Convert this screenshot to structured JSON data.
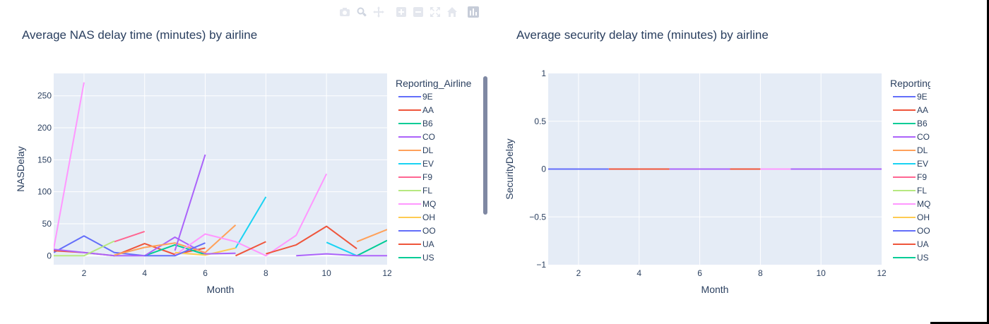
{
  "modebar": {
    "icons": [
      "camera-icon",
      "zoom-icon",
      "pan-icon",
      "zoom-in-icon",
      "zoom-out-icon",
      "autoscale-icon",
      "home-icon",
      "plotly-logo-icon"
    ]
  },
  "colors": {
    "plot_bg": "#e5ecf6",
    "text": "#2a3f5f",
    "scrollbar": "#7f88a3",
    "series": {
      "9E": "#636efa",
      "AA": "#EF553B",
      "B6": "#00cc96",
      "CO": "#ab63fa",
      "DL": "#FFA15A",
      "EV": "#19d3f3",
      "F9": "#FF6692",
      "FL": "#B6E880",
      "MQ": "#FF97FF",
      "OH": "#FECB52",
      "OO": "#636efa",
      "UA": "#EF553B",
      "US": "#00cc96"
    }
  },
  "chart_data": [
    {
      "type": "line",
      "title": "Average NAS delay time (minutes) by airline",
      "xlabel": "Month",
      "ylabel": "NASDelay",
      "xlim": [
        1,
        12
      ],
      "ylim": [
        -14,
        285
      ],
      "xticks": [
        2,
        4,
        6,
        8,
        10,
        12
      ],
      "yticks": [
        0,
        50,
        100,
        150,
        200,
        250
      ],
      "legend_title": "Reporting_Airline",
      "legend": [
        "9E",
        "AA",
        "B6",
        "CO",
        "DL",
        "EV",
        "F9",
        "FL",
        "MQ",
        "OH",
        "OO",
        "UA",
        "US"
      ],
      "series": [
        {
          "name": "9E",
          "x": [
            1,
            2,
            3,
            4
          ],
          "y": [
            5,
            31,
            5,
            0
          ]
        },
        {
          "name": "AA",
          "x": [
            1,
            2,
            3,
            4,
            5,
            6
          ],
          "y": [
            8,
            5,
            0,
            19,
            2,
            12
          ]
        },
        {
          "name": "B6",
          "x": [
            4,
            5,
            6
          ],
          "y": [
            0,
            17,
            2
          ]
        },
        {
          "name": "CO",
          "x": [
            1,
            2,
            3,
            4,
            5,
            6
          ],
          "y": [
            10,
            5,
            0,
            0,
            29,
            3
          ]
        },
        {
          "name": "DL",
          "x": [
            3,
            4,
            5,
            6,
            7
          ],
          "y": [
            1,
            13,
            20,
            5,
            48
          ]
        },
        {
          "name": "EV",
          "x": [
            7,
            8
          ],
          "y": [
            12,
            92
          ]
        },
        {
          "name": "F9",
          "x": [
            3,
            4
          ],
          "y": [
            22,
            38
          ]
        },
        {
          "name": "FL",
          "x": [
            1,
            2,
            3
          ],
          "y": [
            0,
            0,
            23
          ]
        },
        {
          "name": "MQ",
          "x": [
            1,
            2
          ],
          "y": [
            11,
            271
          ]
        },
        {
          "name": "MQ",
          "x": [
            5,
            6,
            7,
            8,
            9,
            10
          ],
          "y": [
            1,
            34,
            22,
            0,
            32,
            128
          ]
        },
        {
          "name": "OH",
          "x": [
            5,
            6,
            7
          ],
          "y": [
            5,
            1,
            12
          ]
        },
        {
          "name": "OO",
          "x": [
            4,
            5,
            6
          ],
          "y": [
            0,
            0,
            20
          ]
        },
        {
          "name": "UA",
          "x": [
            7,
            8
          ],
          "y": [
            0,
            22
          ]
        },
        {
          "name": "UA",
          "x": [
            8,
            9,
            10,
            11
          ],
          "y": [
            3,
            17,
            46,
            11
          ]
        },
        {
          "name": "EV",
          "x": [
            10,
            11
          ],
          "y": [
            21,
            0
          ]
        },
        {
          "name": "US",
          "x": [
            11,
            12
          ],
          "y": [
            0,
            24
          ]
        },
        {
          "name": "DL",
          "x": [
            11,
            12
          ],
          "y": [
            22,
            41
          ]
        },
        {
          "name": "CO",
          "x": [
            5,
            6
          ],
          "y": [
            8,
            158
          ]
        },
        {
          "name": "CO",
          "x": [
            6,
            7
          ],
          "y": [
            3,
            4
          ]
        },
        {
          "name": "CO",
          "x": [
            9,
            10,
            11,
            12
          ],
          "y": [
            0,
            3,
            0,
            0
          ]
        }
      ]
    },
    {
      "type": "line",
      "title": "Average security delay time (minutes) by airline",
      "xlabel": "Month",
      "ylabel": "SecurityDelay",
      "xlim": [
        1,
        12
      ],
      "ylim": [
        -1,
        1
      ],
      "xticks": [
        2,
        4,
        6,
        8,
        10,
        12
      ],
      "yticks": [
        -1,
        -0.5,
        0,
        0.5,
        1
      ],
      "ytick_labels": [
        "−1",
        "−0.5",
        "0",
        "0.5",
        "1"
      ],
      "legend_title": "Reporting_Airline",
      "legend": [
        "9E",
        "AA",
        "B6",
        "CO",
        "DL",
        "EV",
        "F9",
        "FL",
        "MQ",
        "OH",
        "OO",
        "UA",
        "US"
      ],
      "series": [
        {
          "name": "9E",
          "x": [
            1,
            3
          ],
          "y": [
            0,
            0
          ]
        },
        {
          "name": "AA",
          "x": [
            3,
            5
          ],
          "y": [
            0,
            0
          ]
        },
        {
          "name": "CO",
          "x": [
            5,
            7
          ],
          "y": [
            0,
            0
          ]
        },
        {
          "name": "AA",
          "x": [
            7,
            8
          ],
          "y": [
            0,
            0
          ]
        },
        {
          "name": "MQ",
          "x": [
            8,
            9
          ],
          "y": [
            0,
            0
          ]
        },
        {
          "name": "CO",
          "x": [
            9,
            12
          ],
          "y": [
            0,
            0
          ]
        }
      ]
    }
  ]
}
